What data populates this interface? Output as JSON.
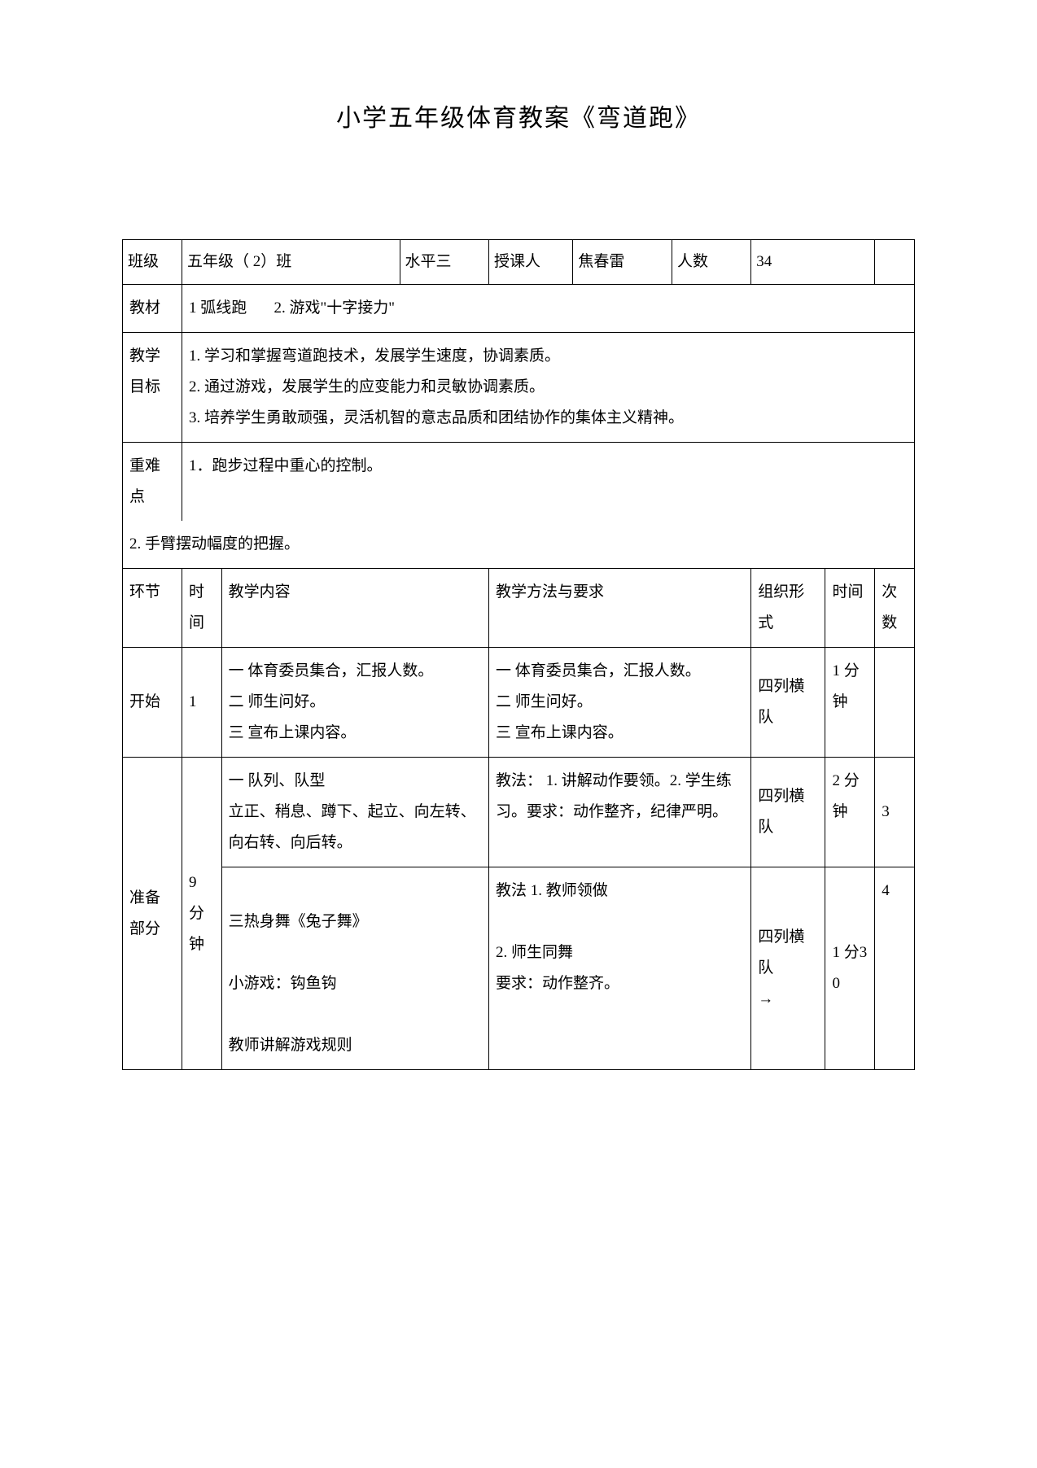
{
  "title": "小学五年级体育教案《弯道跑》",
  "row1": {
    "h1": "班级",
    "v1": "五年级（ 2）班",
    "h2": "水平三",
    "h3": "授课人",
    "v3": "焦春雷",
    "h4": "人数",
    "v4": "34"
  },
  "row2": {
    "h": "教材",
    "v": "1 弧线跑       2. 游戏\"十字接力\""
  },
  "row3": {
    "h": "教学目标",
    "v": "1. 学习和掌握弯道跑技术，发展学生速度，协调素质。\n2. 通过游戏，发展学生的应变能力和灵敏协调素质。\n3. 培养学生勇敢顽强，灵活机智的意志品质和团结协作的集体主义精神。"
  },
  "row4": {
    "h": "重难点",
    "v1": "1．跑步过程中重心的控制。",
    "v2": "2. 手臂摆动幅度的把握。"
  },
  "row5": {
    "c1": "环节",
    "c2": "时间",
    "c3": "教学内容",
    "c4": "教学方法与要求",
    "c5": "组织形式",
    "c6": "时间",
    "c7": "次数"
  },
  "row6": {
    "c1": "开始",
    "c2": "1",
    "c3": "一 体育委员集合，汇报人数。\n二 师生问好。\n三 宣布上课内容。",
    "c4": "一 体育委员集合，汇报人数。\n二 师生问好。\n三 宣布上课内容。",
    "c5": "四列横队",
    "c6": "1 分钟",
    "c7": ""
  },
  "row7a": {
    "c1": "准备部分",
    "c2": "9 分钟",
    "c3": "一 队列、队型\n立正、稍息、蹲下、起立、向左转、向右转、向后转。",
    "c4": "教法： 1. 讲解动作要领。2. 学生练习。要求：动作整齐，纪律严明。",
    "c5": "四列横队",
    "c6": "2 分钟",
    "c7": "3"
  },
  "row7b": {
    "c3": "\n三热身舞《兔子舞》\n\n小游戏：钩鱼钩\n\n教师讲解游戏规则",
    "c4": "教法 1. 教师领做\n\n         2. 师生同舞\n要求：动作整齐。",
    "c5": "四列横队\n→",
    "c6": "1 分30",
    "c7": "4"
  }
}
